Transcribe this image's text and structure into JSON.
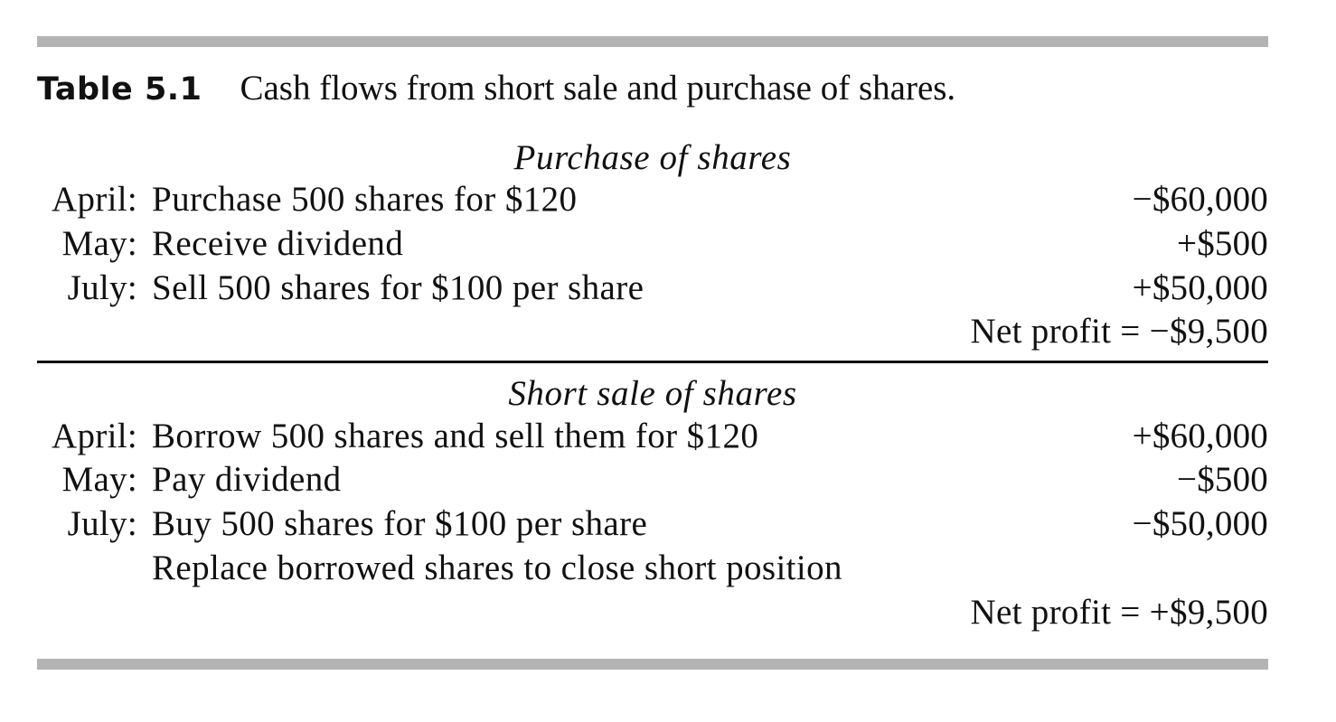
{
  "table": {
    "label": "Table 5.1",
    "caption": "Cash flows from short sale and purchase of shares."
  },
  "sections": [
    {
      "heading": "Purchase of shares",
      "rows": [
        {
          "month": "April:",
          "description": "Purchase 500 shares for $120",
          "amount": "−$60,000"
        },
        {
          "month": "May:",
          "description": "Receive dividend",
          "amount": "+$500"
        },
        {
          "month": "July:",
          "description": "Sell 500 shares for $100 per share",
          "amount": "+$50,000"
        }
      ],
      "net_profit": "Net profit = −$9,500"
    },
    {
      "heading": "Short sale of shares",
      "rows": [
        {
          "month": "April:",
          "description": "Borrow 500 shares and sell them for $120",
          "amount": "+$60,000"
        },
        {
          "month": "May:",
          "description": "Pay dividend",
          "amount": "−$500"
        },
        {
          "month": "July:",
          "description": "Buy 500 shares for $100 per share",
          "amount": "−$50,000"
        },
        {
          "month": "",
          "description": "Replace borrowed shares to close short position",
          "amount": ""
        }
      ],
      "net_profit": "Net profit = +$9,500"
    }
  ],
  "colors": {
    "rule_thick": "#b3b3b3",
    "rule_thin": "#111111",
    "text": "#111111"
  }
}
